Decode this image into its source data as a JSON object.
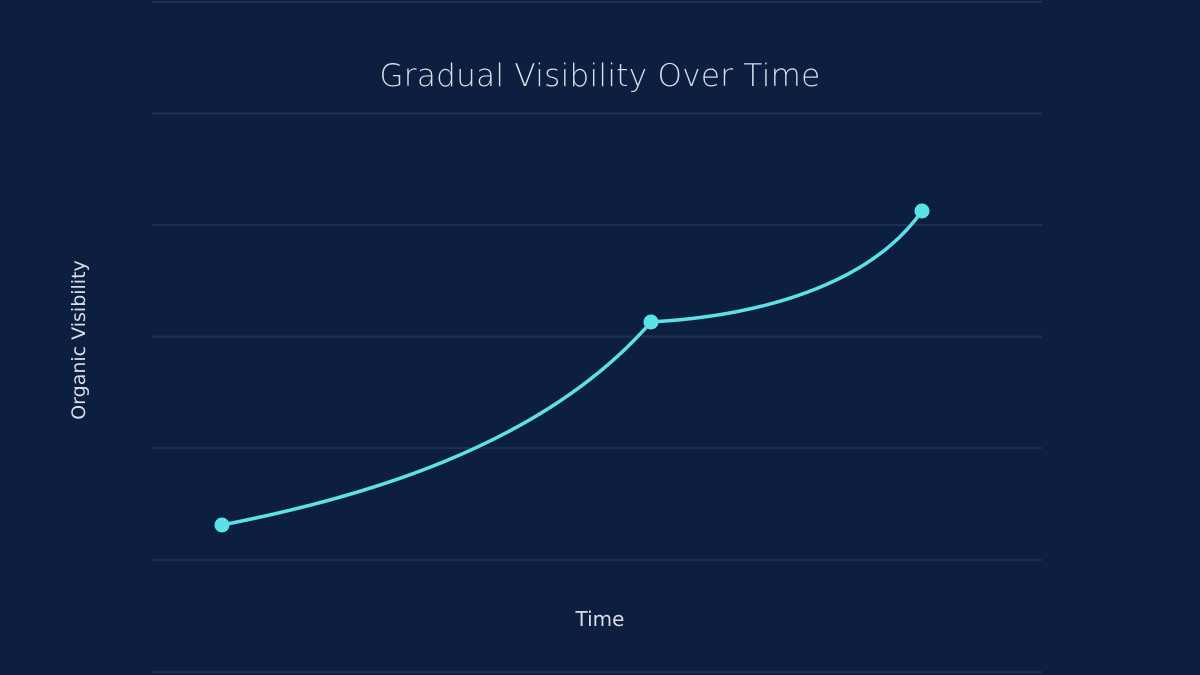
{
  "chart_data": {
    "type": "line",
    "title": "Gradual Visibility Over Time",
    "xlabel": "Time",
    "ylabel": "Organic Visibility",
    "x": [
      1,
      2,
      3
    ],
    "series": [
      {
        "name": "Organic Visibility",
        "values": [
          12,
          42,
          58
        ],
        "color": "#5ce1e6",
        "smooth": true,
        "markers": true
      }
    ],
    "ylim": [
      0,
      100
    ],
    "grid": {
      "horizontal": true,
      "vertical": false,
      "lines": 7
    },
    "tick_labels_visible": false,
    "legend": "none"
  },
  "colors": {
    "background": "#0c1f40",
    "gridline": "#1c3052",
    "line": "#5ce1e6",
    "text": "#d9dde6"
  }
}
